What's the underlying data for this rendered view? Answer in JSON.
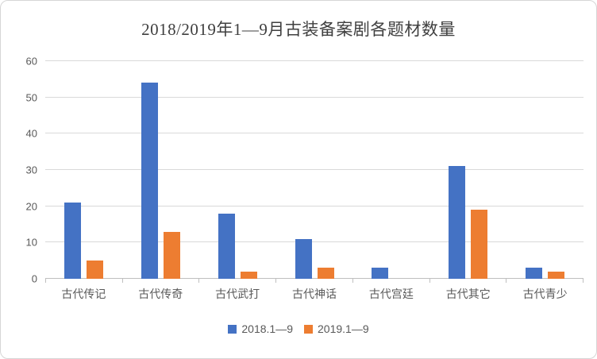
{
  "chart_data": {
    "type": "bar",
    "title": "2018/2019年1—9月古装备案剧各题材数量",
    "categories": [
      "古代传记",
      "古代传奇",
      "古代武打",
      "古代神话",
      "古代宫廷",
      "古代其它",
      "古代青少"
    ],
    "series": [
      {
        "name": "2018.1—9",
        "color": "#4472C4",
        "values": [
          21,
          54,
          18,
          11,
          3,
          31,
          3
        ]
      },
      {
        "name": "2019.1—9",
        "color": "#ED7D31",
        "values": [
          5,
          13,
          2,
          3,
          0,
          19,
          2
        ]
      }
    ],
    "xlabel": "",
    "ylabel": "",
    "ylim": [
      0,
      60
    ],
    "ytick_step": 10,
    "grid": "horizontal",
    "legend_position": "bottom",
    "colors": {
      "grid": "#D9D9D9",
      "axis": "#BFBFBF",
      "text": "#595959",
      "title": "#3F3F3F"
    }
  }
}
